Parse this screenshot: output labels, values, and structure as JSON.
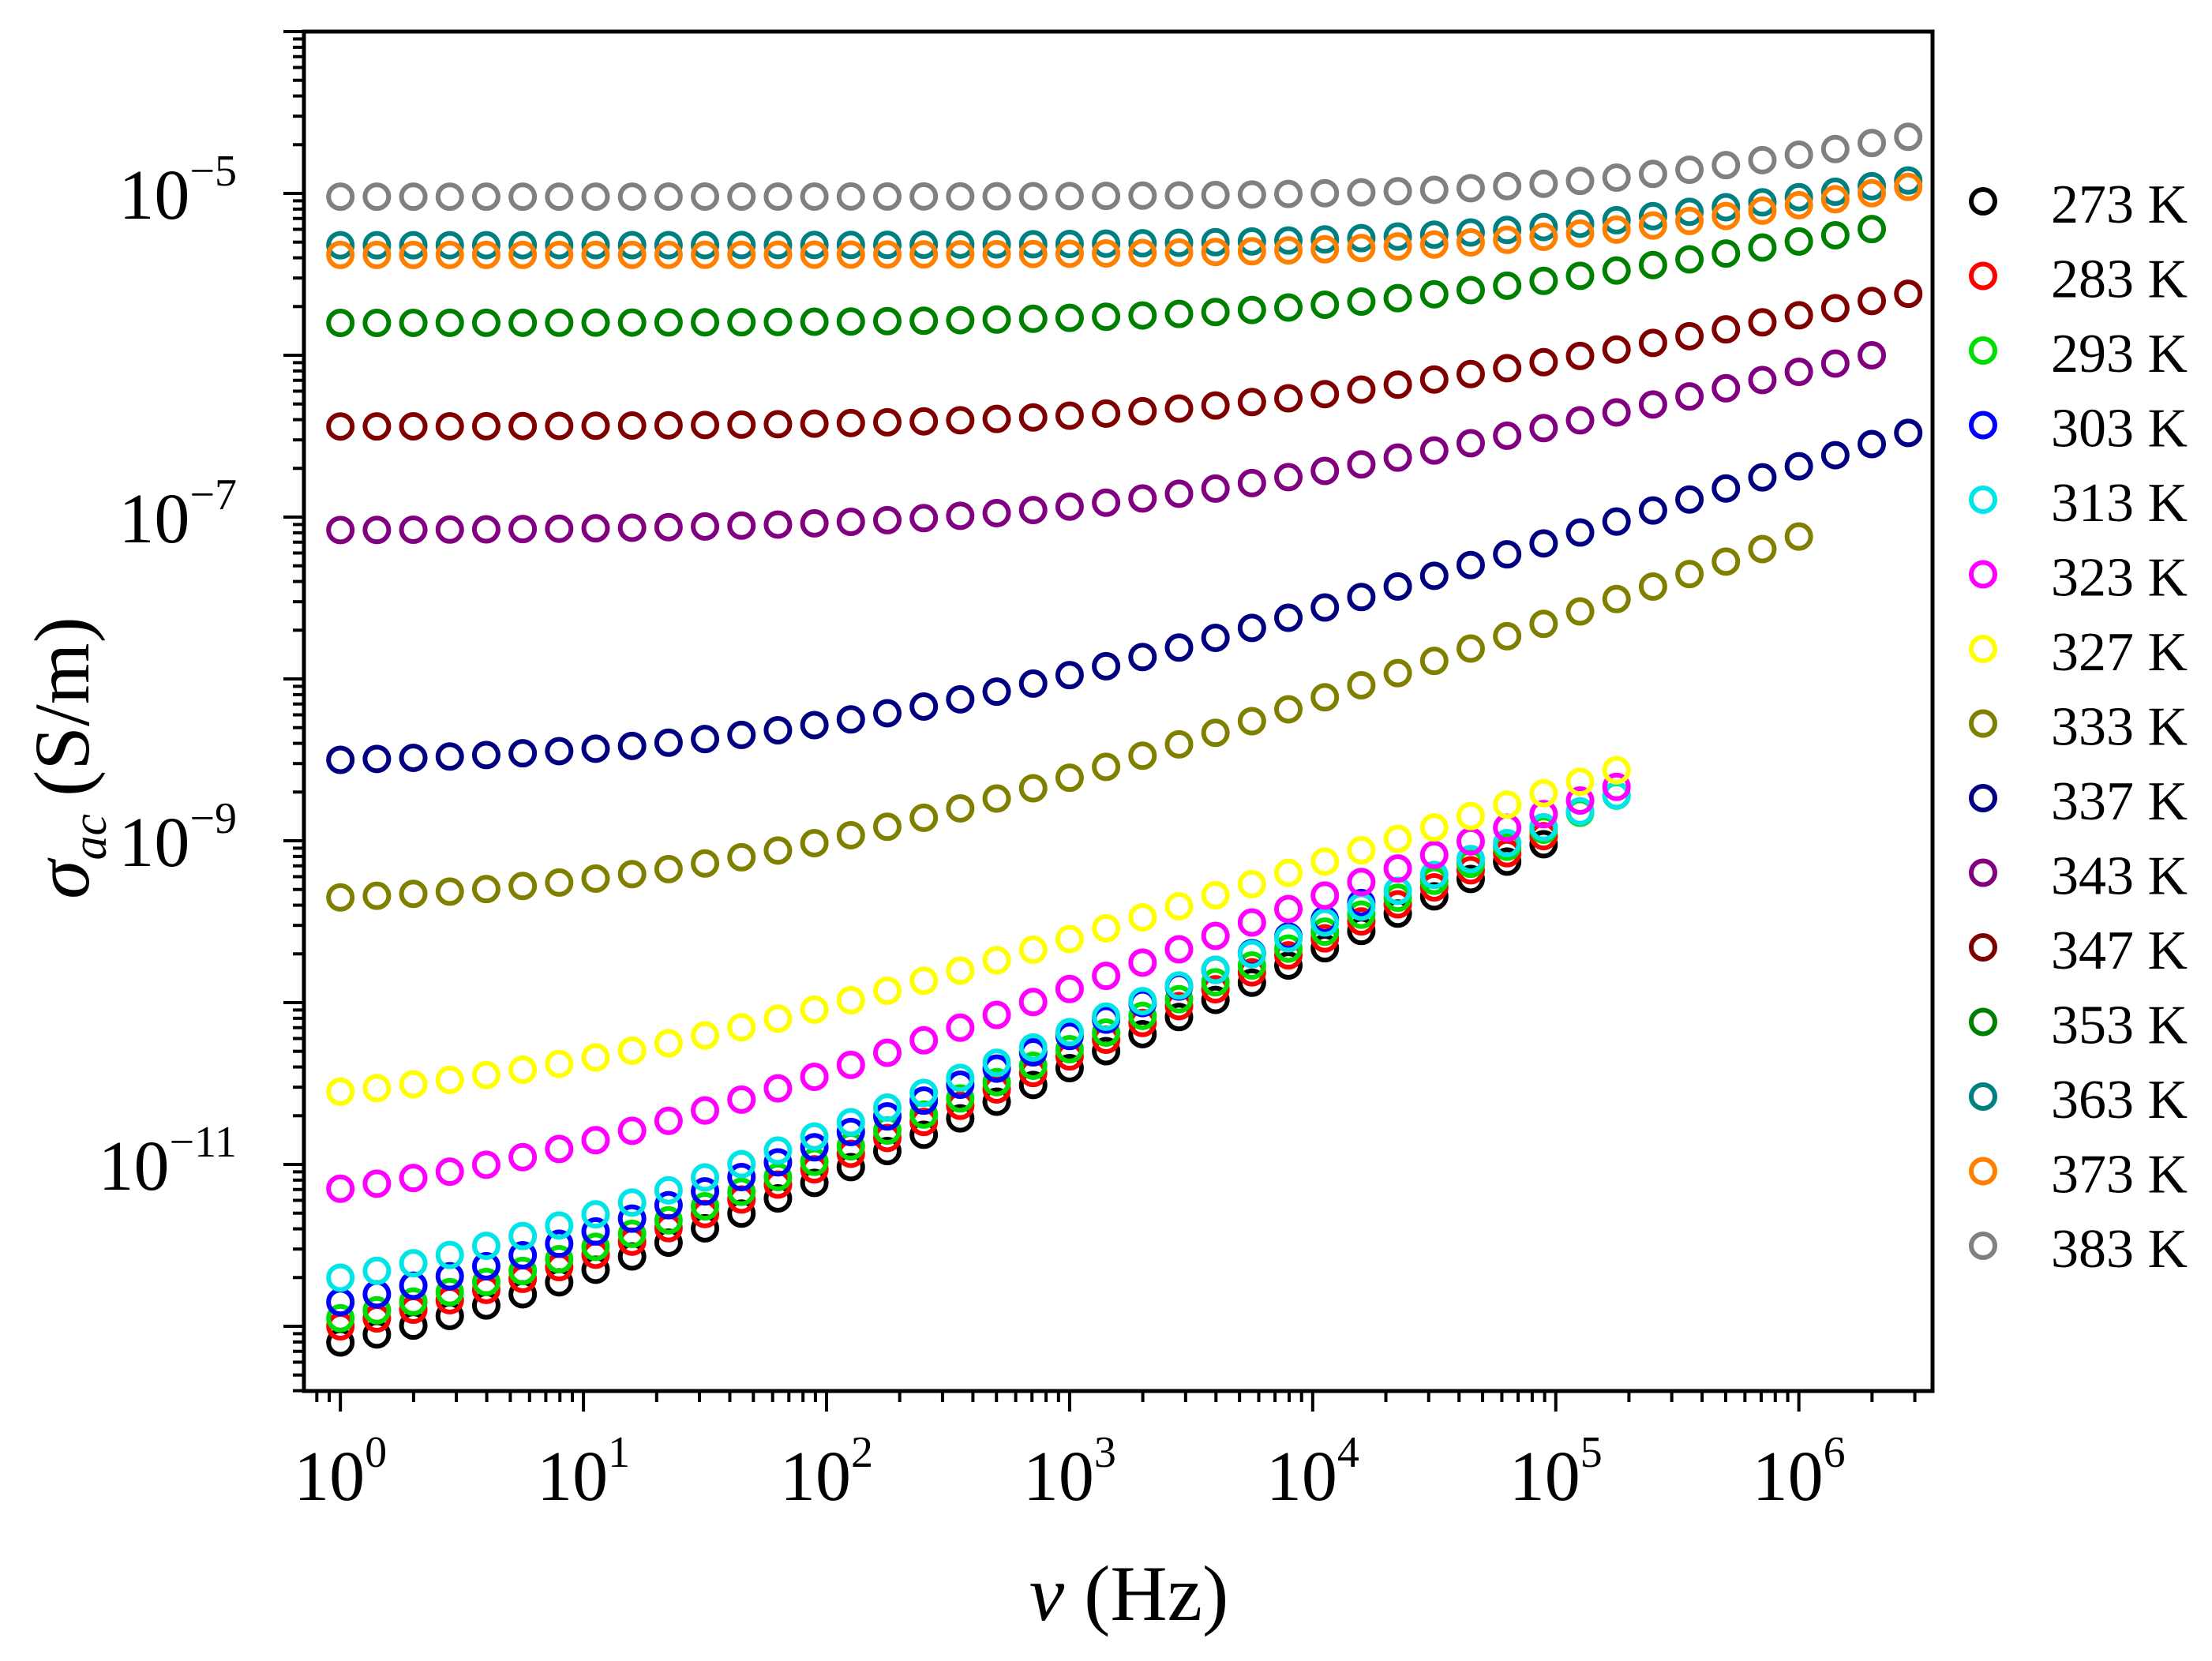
{
  "chart_data": {
    "type": "scatter",
    "title": "",
    "xlabel_symbol": "ν",
    "xlabel_unit": "(Hz)",
    "ylabel_symbol": "σ",
    "ylabel_subscript": "ac",
    "ylabel_unit": "(S/m)",
    "xscale": "log",
    "yscale": "log",
    "xlim_log10": [
      -0.15,
      6.55
    ],
    "ylim_log10": [
      -12.4,
      -4.0
    ],
    "x_ticks": [
      {
        "base": "10",
        "exp": "0",
        "log": 0
      },
      {
        "base": "10",
        "exp": "1",
        "log": 1
      },
      {
        "base": "10",
        "exp": "2",
        "log": 2
      },
      {
        "base": "10",
        "exp": "3",
        "log": 3
      },
      {
        "base": "10",
        "exp": "4",
        "log": 4
      },
      {
        "base": "10",
        "exp": "5",
        "log": 5
      },
      {
        "base": "10",
        "exp": "6",
        "log": 6
      }
    ],
    "y_ticks": [
      {
        "base": "10",
        "exp": "−5",
        "log": -5
      },
      {
        "base": "10",
        "exp": "−7",
        "log": -7
      },
      {
        "base": "10",
        "exp": "−9",
        "log": -9
      },
      {
        "base": "10",
        "exp": "−11",
        "log": -11
      }
    ],
    "legend_position": "right, outside plot",
    "series": [
      {
        "name": "273 K",
        "color": "#000000",
        "xmax_log10": 4.98,
        "start_log10": -12.1,
        "end_log10": -9.0,
        "knee_log10": 0.2,
        "shape": 0.8
      },
      {
        "name": "283 K",
        "color": "#ff0000",
        "xmax_log10": 4.98,
        "start_log10": -12.0,
        "end_log10": -8.95,
        "knee_log10": 0.2,
        "shape": 0.8
      },
      {
        "name": "293 K",
        "color": "#00dd00",
        "xmax_log10": 5.28,
        "start_log10": -11.95,
        "end_log10": -8.7,
        "knee_log10": 0.2,
        "shape": 0.8
      },
      {
        "name": "303 K",
        "color": "#0000ff",
        "xmax_log10": 4.25,
        "start_log10": -11.85,
        "end_log10": -9.35,
        "knee_log10": 0.2,
        "shape": 0.8
      },
      {
        "name": "313 K",
        "color": "#00e5e5",
        "xmax_log10": 5.28,
        "start_log10": -11.7,
        "end_log10": -8.7,
        "knee_log10": 0.3,
        "shape": 0.8
      },
      {
        "name": "323 K",
        "color": "#ff00ff",
        "xmax_log10": 5.28,
        "start_log10": -11.15,
        "end_log10": -8.65,
        "knee_log10": 0.5,
        "shape": 0.8
      },
      {
        "name": "327 K",
        "color": "#ffff00",
        "xmax_log10": 5.28,
        "start_log10": -10.55,
        "end_log10": -8.55,
        "knee_log10": 0.8,
        "shape": 0.85
      },
      {
        "name": "333 K",
        "color": "#808000",
        "xmax_log10": 6.0,
        "start_log10": -9.35,
        "end_log10": -7.12,
        "knee_log10": 1.6,
        "shape": 0.8
      },
      {
        "name": "337 K",
        "color": "#000080",
        "xmax_log10": 6.45,
        "start_log10": -8.5,
        "end_log10": -6.48,
        "knee_log10": 2.0,
        "shape": 0.8
      },
      {
        "name": "343 K",
        "color": "#800080",
        "xmax_log10": 6.3,
        "start_log10": -7.08,
        "end_log10": -6.0,
        "knee_log10": 3.2,
        "shape": 0.75
      },
      {
        "name": "347 K",
        "color": "#800000",
        "xmax_log10": 6.45,
        "start_log10": -6.44,
        "end_log10": -5.62,
        "knee_log10": 3.8,
        "shape": 0.75
      },
      {
        "name": "353 K",
        "color": "#008000",
        "xmax_log10": 6.3,
        "start_log10": -5.8,
        "end_log10": -5.22,
        "knee_log10": 4.2,
        "shape": 0.7
      },
      {
        "name": "363 K",
        "color": "#008080",
        "xmax_log10": 6.45,
        "start_log10": -5.32,
        "end_log10": -4.92,
        "knee_log10": 5.0,
        "shape": 0.65
      },
      {
        "name": "373 K",
        "color": "#ff8000",
        "xmax_log10": 6.45,
        "start_log10": -5.38,
        "end_log10": -4.96,
        "knee_log10": 5.1,
        "shape": 0.65
      },
      {
        "name": "383 K",
        "color": "#808080",
        "xmax_log10": 6.45,
        "start_log10": -5.02,
        "end_log10": -4.65,
        "knee_log10": 5.3,
        "shape": 0.6
      }
    ]
  }
}
